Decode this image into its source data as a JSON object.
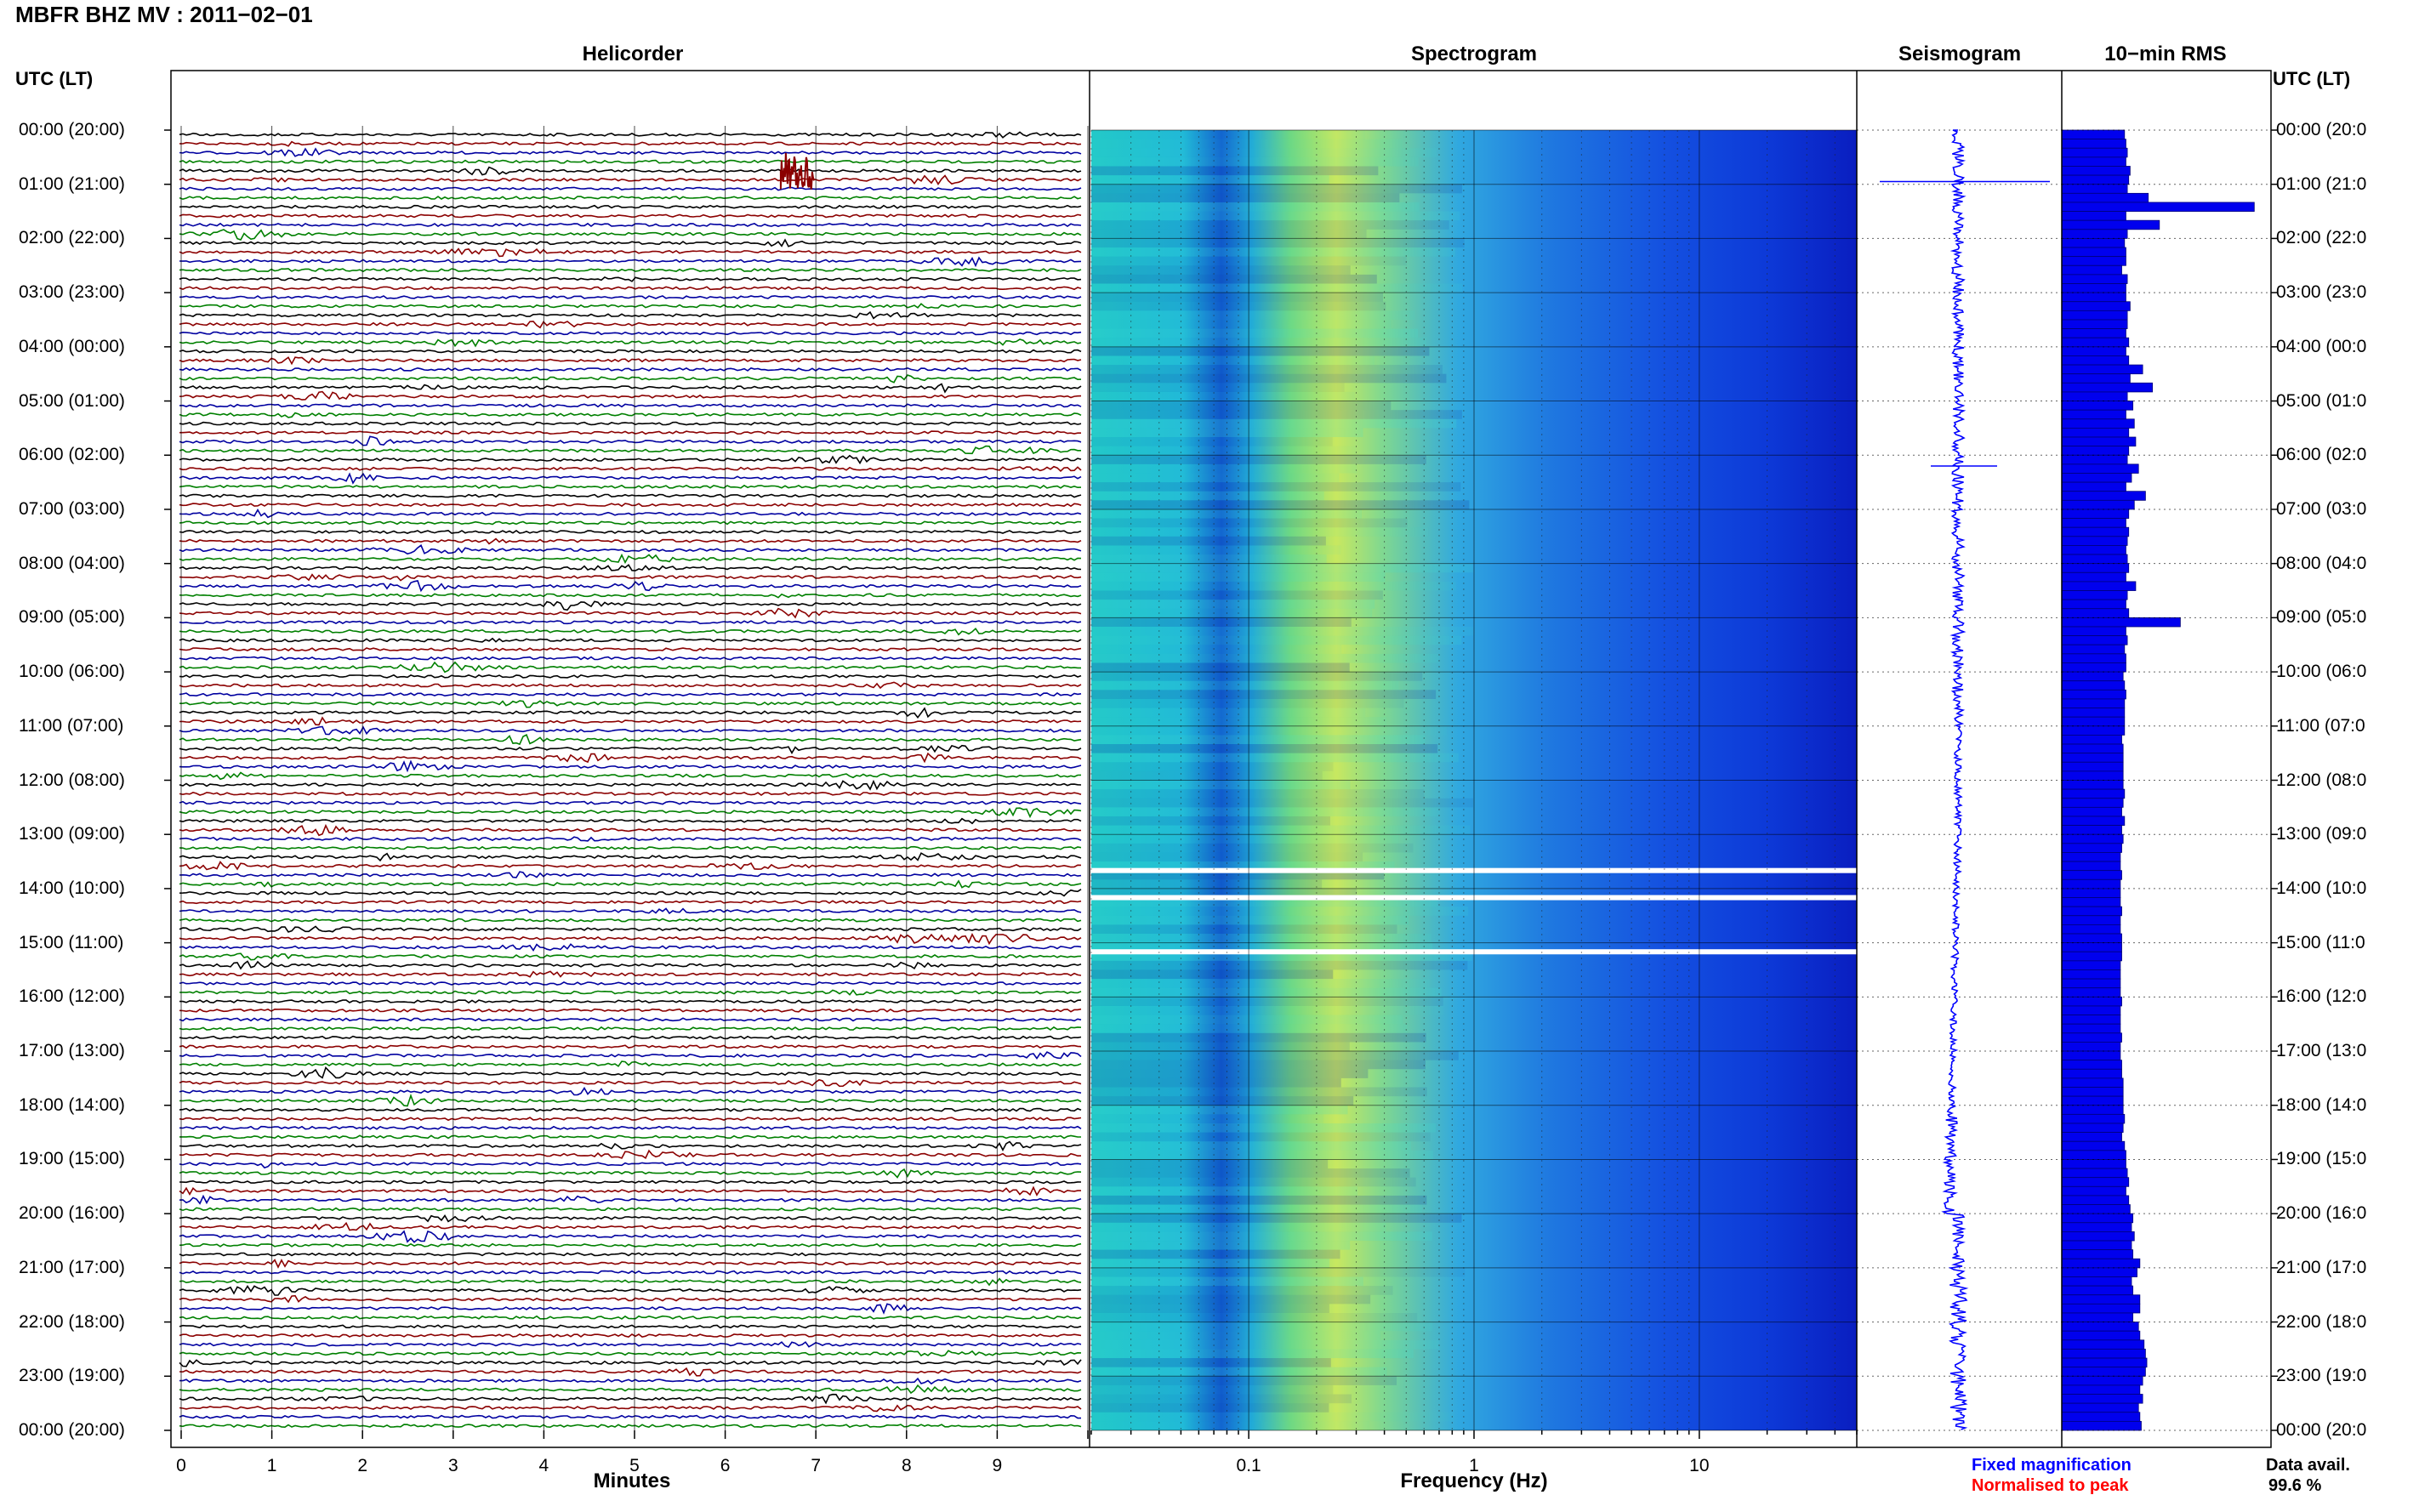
{
  "title": "MBFR BHZ MV : 2011−02−01",
  "panels": {
    "helicorder": "Helicorder",
    "spectrogram": "Spectrogram",
    "seismogram": "Seismogram",
    "rms": "10−min RMS"
  },
  "utc_label_left": "UTC (LT)",
  "utc_label_right": "UTC (LT)",
  "time_labels": [
    "00:00 (20:00)",
    "01:00 (21:00)",
    "02:00 (22:00)",
    "03:00 (23:00)",
    "04:00 (00:00)",
    "05:00 (01:00)",
    "06:00 (02:00)",
    "07:00 (03:00)",
    "08:00 (04:00)",
    "09:00 (05:00)",
    "10:00 (06:00)",
    "11:00 (07:00)",
    "12:00 (08:00)",
    "13:00 (09:00)",
    "14:00 (10:00)",
    "15:00 (11:00)",
    "16:00 (12:00)",
    "17:00 (13:00)",
    "18:00 (14:00)",
    "19:00 (15:00)",
    "20:00 (16:00)",
    "21:00 (17:00)",
    "22:00 (18:00)",
    "23:00 (19:00)",
    "00:00 (20:00)"
  ],
  "time_labels_right": [
    "00:00 (20:0",
    "01:00 (21:0",
    "02:00 (22:0",
    "03:00 (23:0",
    "04:00 (00:0",
    "05:00 (01:0",
    "06:00 (02:0",
    "07:00 (03:0",
    "08:00 (04:0",
    "09:00 (05:0",
    "10:00 (06:0",
    "11:00 (07:0",
    "12:00 (08:0",
    "13:00 (09:0",
    "14:00 (10:0",
    "15:00 (11:0",
    "16:00 (12:0",
    "17:00 (13:0",
    "18:00 (14:0",
    "19:00 (15:0",
    "20:00 (16:0",
    "21:00 (17:0",
    "22:00 (18:0",
    "23:00 (19:0",
    "00:00 (20:0"
  ],
  "minutes_ticks": [
    "0",
    "1",
    "2",
    "3",
    "4",
    "5",
    "6",
    "7",
    "8",
    "9"
  ],
  "minutes_label": "Minutes",
  "freq_ticks": [
    "0.1",
    "1",
    "10"
  ],
  "freq_label": "Frequency (Hz)",
  "legend": {
    "fixed": "Fixed magnification",
    "normalised": "Normalised to peak",
    "fixed_color": "#0000ff",
    "normalised_color": "#ff0000"
  },
  "data_avail_label": "Data avail.",
  "data_avail_value": "99.6 %",
  "trace_colors": [
    "#000000",
    "#8b0000",
    "#0000a0",
    "#008000"
  ],
  "spectrogram_gaps": [
    "13:40",
    "14:10",
    "15:10"
  ],
  "chart_data": {
    "type": "heatmap",
    "rms_10min": [
      4.5,
      4.6,
      4.7,
      4.6,
      4.9,
      4.8,
      4.7,
      6.2,
      13.8,
      4.6,
      7.0,
      4.7,
      4.5,
      4.6,
      4.6,
      4.3,
      4.7,
      4.6,
      4.6,
      4.9,
      4.7,
      4.7,
      4.6,
      4.8,
      4.6,
      4.8,
      5.8,
      4.9,
      6.5,
      4.7,
      5.1,
      4.6,
      5.2,
      4.8,
      5.3,
      4.8,
      4.7,
      5.5,
      5.0,
      4.6,
      6.0,
      5.2,
      4.8,
      4.6,
      4.8,
      4.7,
      4.6,
      4.7,
      4.8,
      4.6,
      5.3,
      4.7,
      4.6,
      4.8,
      8.5,
      4.6,
      4.7,
      4.5,
      4.6,
      4.6,
      4.4,
      4.5,
      4.6,
      4.5,
      4.5,
      4.5,
      4.5,
      4.3,
      4.4,
      4.4,
      4.4,
      4.4,
      4.4,
      4.5,
      4.4,
      4.3,
      4.5,
      4.3,
      4.4,
      4.3,
      4.2,
      4.2,
      4.3,
      4.2,
      4.2,
      4.2,
      4.3,
      4.2,
      4.2,
      4.3,
      4.3,
      4.3,
      4.2,
      4.2,
      4.2,
      4.2,
      4.3,
      4.2,
      4.2,
      4.2,
      4.3,
      4.2,
      4.2,
      4.3,
      4.3,
      4.4,
      4.4,
      4.4,
      4.4,
      4.5,
      4.4,
      4.3,
      4.5,
      4.6,
      4.6,
      4.7,
      4.8,
      4.6,
      4.8,
      4.9,
      5.1,
      5.0,
      5.2,
      5.0,
      5.1,
      5.6,
      5.4,
      5.0,
      5.1,
      5.6,
      5.6,
      5.1,
      5.5,
      5.6,
      5.9,
      6.0,
      6.1,
      6.0,
      5.8,
      5.6,
      5.8,
      5.5,
      5.6,
      5.7
    ],
    "xlabel_helicorder": "Minutes",
    "xlabel_spectrogram": "Frequency (Hz)",
    "minutes_range": [
      0,
      10
    ],
    "freq_range": [
      0.02,
      50
    ],
    "freq_scale": "log",
    "hours_range": [
      0,
      24
    ]
  }
}
